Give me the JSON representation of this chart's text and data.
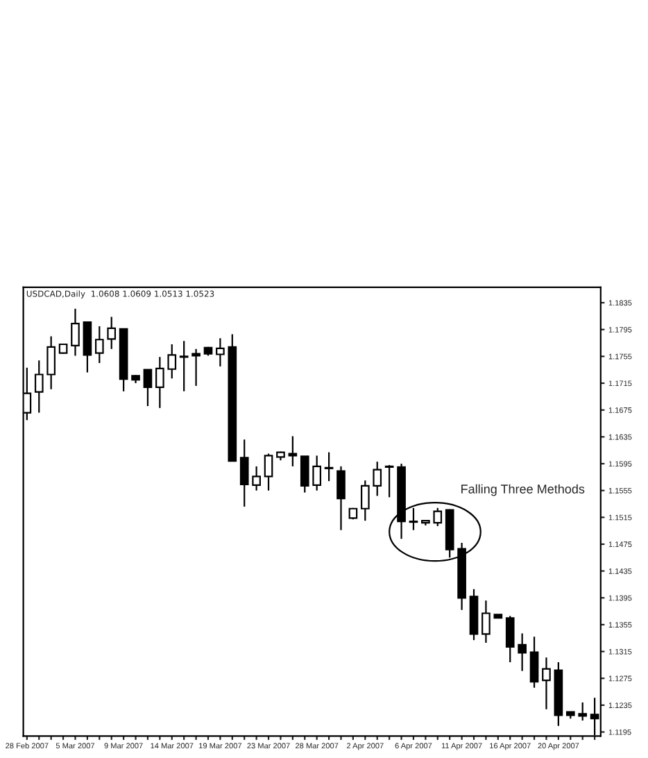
{
  "chart_data": {
    "type": "candlestick",
    "title": "USDCAD,Daily  1.0608 1.0609 1.0513 1.0523",
    "categories": [
      "28 Feb 2007",
      null,
      null,
      null,
      "5 Mar 2007",
      null,
      null,
      null,
      "9 Mar 2007",
      null,
      null,
      null,
      "14 Mar 2007",
      null,
      null,
      null,
      "19 Mar 2007",
      null,
      null,
      null,
      "23 Mar 2007",
      null,
      null,
      null,
      "28 Mar 2007",
      null,
      null,
      null,
      "2 Apr 2007",
      null,
      null,
      null,
      "6 Apr 2007",
      null,
      null,
      null,
      "11 Apr 2007",
      null,
      null,
      null,
      "16 Apr 2007",
      null,
      null,
      null,
      "20 Apr 2007",
      null,
      null,
      null
    ],
    "ohlc": [
      [
        1.1671,
        1.1738,
        1.166,
        1.17
      ],
      [
        1.1702,
        1.1749,
        1.1671,
        1.1728
      ],
      [
        1.1728,
        1.1785,
        1.1706,
        1.1769
      ],
      [
        1.176,
        1.1774,
        1.1759,
        1.1773
      ],
      [
        1.1771,
        1.1826,
        1.1756,
        1.1804
      ],
      [
        1.1806,
        1.1806,
        1.1731,
        1.1757
      ],
      [
        1.176,
        1.18,
        1.1745,
        1.178
      ],
      [
        1.1781,
        1.1814,
        1.1766,
        1.1797
      ],
      [
        1.1796,
        1.1796,
        1.1703,
        1.1721
      ],
      [
        1.1726,
        1.1727,
        1.1715,
        1.172
      ],
      [
        1.1735,
        1.1735,
        1.1681,
        1.1709
      ],
      [
        1.1709,
        1.1754,
        1.1678,
        1.1737
      ],
      [
        1.1736,
        1.1773,
        1.1722,
        1.1757
      ],
      [
        1.1754,
        1.1778,
        1.1703,
        1.1755
      ],
      [
        1.1759,
        1.1766,
        1.1711,
        1.1756
      ],
      [
        1.1768,
        1.1769,
        1.1756,
        1.1759
      ],
      [
        1.1758,
        1.1782,
        1.174,
        1.1767
      ],
      [
        1.1769,
        1.1788,
        1.1599,
        1.1599
      ],
      [
        1.1604,
        1.1631,
        1.1531,
        1.1564
      ],
      [
        1.1563,
        1.1591,
        1.1555,
        1.1576
      ],
      [
        1.1576,
        1.161,
        1.1555,
        1.1607
      ],
      [
        1.1605,
        1.1613,
        1.16,
        1.1612
      ],
      [
        1.161,
        1.1636,
        1.1591,
        1.1607
      ],
      [
        1.1606,
        1.1606,
        1.1552,
        1.1562
      ],
      [
        1.1563,
        1.1607,
        1.1555,
        1.1591
      ],
      [
        1.1588,
        1.1612,
        1.1569,
        1.1589
      ],
      [
        1.1584,
        1.1591,
        1.1496,
        1.1543
      ],
      [
        1.1514,
        1.1529,
        1.1512,
        1.1528
      ],
      [
        1.1528,
        1.157,
        1.151,
        1.1562
      ],
      [
        1.1562,
        1.1598,
        1.1547,
        1.1586
      ],
      [
        1.159,
        1.1593,
        1.1545,
        1.1591
      ],
      [
        1.159,
        1.1595,
        1.1483,
        1.1509
      ],
      [
        1.1508,
        1.1529,
        1.1496,
        1.1509
      ],
      [
        1.1507,
        1.1511,
        1.1503,
        1.151
      ],
      [
        1.1507,
        1.1529,
        1.1502,
        1.1524
      ],
      [
        1.1526,
        1.1527,
        1.1455,
        1.1467
      ],
      [
        1.1468,
        1.1477,
        1.1377,
        1.1395
      ],
      [
        1.1397,
        1.1408,
        1.1332,
        1.1341
      ],
      [
        1.1341,
        1.1391,
        1.1328,
        1.1372
      ],
      [
        1.137,
        1.137,
        1.1365,
        1.1365
      ],
      [
        1.1365,
        1.1368,
        1.1299,
        1.1322
      ],
      [
        1.1325,
        1.1342,
        1.1286,
        1.1313
      ],
      [
        1.1314,
        1.1337,
        1.1261,
        1.127
      ],
      [
        1.1272,
        1.1306,
        1.1229,
        1.1289
      ],
      [
        1.1287,
        1.1299,
        1.1204,
        1.122
      ],
      [
        1.1225,
        1.1225,
        1.1215,
        1.122
      ],
      [
        1.1222,
        1.1239,
        1.1212,
        1.1219
      ],
      [
        1.1221,
        1.1246,
        1.119,
        1.1215
      ]
    ],
    "ylim": [
      1.1189,
      1.1858
    ],
    "yticks": [
      1.1195,
      1.1235,
      1.1275,
      1.1315,
      1.1355,
      1.1395,
      1.1435,
      1.1475,
      1.1515,
      1.1555,
      1.1595,
      1.1635,
      1.1675,
      1.1715,
      1.1755,
      1.1795,
      1.1835
    ],
    "grid": false,
    "legend": false,
    "annotations": [
      "Falling Three Methods"
    ]
  }
}
